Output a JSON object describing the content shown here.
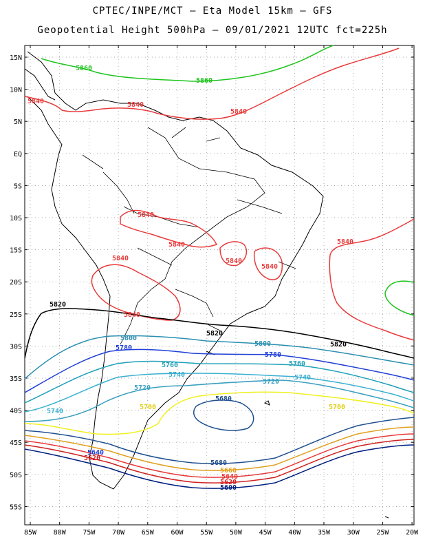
{
  "title_line1": "CPTEC/INPE/MCT  –  Eta Model 15km  –  GFS",
  "title_line2": "Geopotential Height 500hPa – 09/01/2021 12UTC fct=225h",
  "axes": {
    "lat_labels": [
      "15N",
      "10N",
      "5N",
      "EQ",
      "5S",
      "10S",
      "15S",
      "20S",
      "25S",
      "30S",
      "35S",
      "40S",
      "45S",
      "50S",
      "55S"
    ],
    "lon_labels": [
      "85W",
      "80W",
      "75W",
      "70W",
      "65W",
      "60W",
      "55W",
      "50W",
      "45W",
      "40W",
      "35W",
      "30W",
      "25W",
      "20W"
    ]
  },
  "colors": {
    "c5860": "#1fc41f",
    "c5840": "#e83b3b",
    "c5820": "#000000",
    "c5800": "#2a8fb0",
    "c5780": "#1f3fd8",
    "c5760": "#20a0b8",
    "c5740": "#3ab0d0",
    "c5720": "#3aa0c0",
    "c5700": "#f0f020",
    "c5680": "#1f4f8f",
    "c5660": "#e0a020",
    "c5640": "#e83b3b",
    "c5620": "#d02020",
    "c5600": "#001f7f",
    "land": "#000000"
  },
  "contour_labels": [
    {
      "text": "5860"
    },
    {
      "text": "5860"
    },
    {
      "text": "5840"
    },
    {
      "text": "5840"
    },
    {
      "text": "5840"
    },
    {
      "text": "5840"
    },
    {
      "text": "5840"
    },
    {
      "text": "5840"
    },
    {
      "text": "5840"
    },
    {
      "text": "5840"
    },
    {
      "text": "5840"
    },
    {
      "text": "5840"
    },
    {
      "text": "5820"
    },
    {
      "text": "5820"
    },
    {
      "text": "5820"
    },
    {
      "text": "5800"
    },
    {
      "text": "5800"
    },
    {
      "text": "5780"
    },
    {
      "text": "5780"
    },
    {
      "text": "5760"
    },
    {
      "text": "5760"
    },
    {
      "text": "5740"
    },
    {
      "text": "5740"
    },
    {
      "text": "5740"
    },
    {
      "text": "5720"
    },
    {
      "text": "5720"
    },
    {
      "text": "5700"
    },
    {
      "text": "5700"
    },
    {
      "text": "5680"
    },
    {
      "text": "5680"
    },
    {
      "text": "5660"
    },
    {
      "text": "5640"
    },
    {
      "text": "5640"
    },
    {
      "text": "5620"
    },
    {
      "text": "5620"
    },
    {
      "text": "5600"
    }
  ]
}
